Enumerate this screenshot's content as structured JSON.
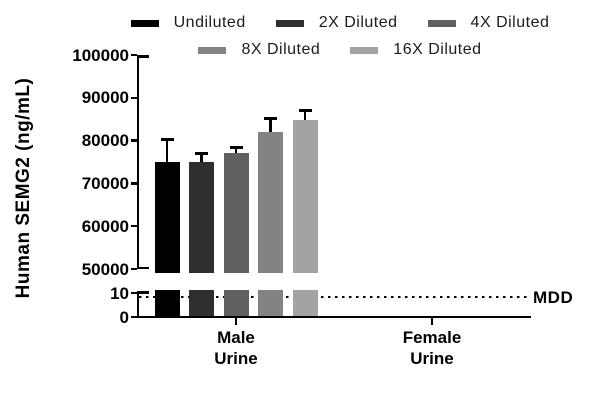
{
  "chart_data": {
    "type": "bar",
    "title": "",
    "ylabel": "Human SEMG2 (ng/mL)",
    "xlabel": "",
    "categories": [
      "Male Urine",
      "Female Urine"
    ],
    "category_labels": [
      [
        "Male",
        "Urine"
      ],
      [
        "Female",
        "Urine"
      ]
    ],
    "y_axis": {
      "broken": true,
      "top_range": [
        50000,
        100000
      ],
      "bottom_range": [
        0,
        10
      ],
      "ticks_top": [
        100000,
        90000,
        80000,
        70000,
        60000,
        50000
      ],
      "ticks_bottom": [
        10,
        0
      ],
      "grid": false
    },
    "series": [
      {
        "name": "Undiluted",
        "color": "#000000",
        "values": [
          75000,
          0
        ],
        "error_plus": [
          5300,
          0
        ]
      },
      {
        "name": "2X Diluted",
        "color": "#2f2f31",
        "values": [
          74900,
          0
        ],
        "error_plus": [
          2100,
          0
        ]
      },
      {
        "name": "4X Diluted",
        "color": "#606062",
        "values": [
          77100,
          0
        ],
        "error_plus": [
          1300,
          0
        ]
      },
      {
        "name": "8X Diluted",
        "color": "#838385",
        "values": [
          82000,
          0
        ],
        "error_plus": [
          3100,
          0
        ]
      },
      {
        "name": "16X Diluted",
        "color": "#a3a3a6",
        "values": [
          84900,
          0
        ],
        "error_plus": [
          2200,
          0
        ]
      }
    ],
    "mdd": {
      "label": "MDD",
      "value": 8.3
    },
    "legend_position": "top",
    "legend_rows": [
      [
        0,
        1,
        2
      ],
      [
        3,
        4
      ]
    ]
  }
}
